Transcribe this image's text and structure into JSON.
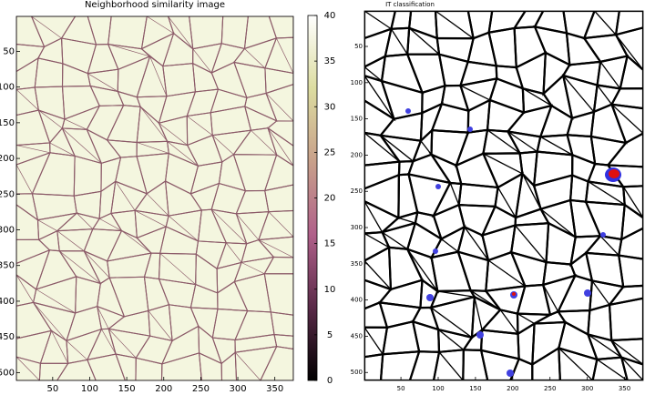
{
  "chart_data": [
    {
      "type": "image",
      "title": "Neighborhood similarity image",
      "xlim": [
        1,
        375
      ],
      "ylim": [
        1,
        511
      ],
      "y_inverted": true,
      "xticks": [
        50,
        100,
        150,
        200,
        250,
        300,
        350
      ],
      "yticks": [
        50,
        100,
        150,
        200,
        250,
        300,
        350,
        400,
        450,
        500
      ],
      "colorbar": {
        "lim": [
          0,
          40
        ],
        "ticks": [
          0,
          5,
          10,
          15,
          20,
          25,
          30,
          35,
          40
        ],
        "colors": [
          "#000000",
          "#5a2a48",
          "#b0608a",
          "#c8a08a",
          "#dcdca0",
          "#ffffff"
        ]
      }
    },
    {
      "type": "image",
      "title": "IT classification",
      "xlim": [
        1,
        375
      ],
      "ylim": [
        1,
        511
      ],
      "y_inverted": true,
      "xticks": [
        50,
        100,
        150,
        200,
        250,
        300,
        350
      ],
      "yticks": [
        50,
        100,
        150,
        200,
        250,
        300,
        350,
        400,
        450,
        500
      ]
    }
  ]
}
